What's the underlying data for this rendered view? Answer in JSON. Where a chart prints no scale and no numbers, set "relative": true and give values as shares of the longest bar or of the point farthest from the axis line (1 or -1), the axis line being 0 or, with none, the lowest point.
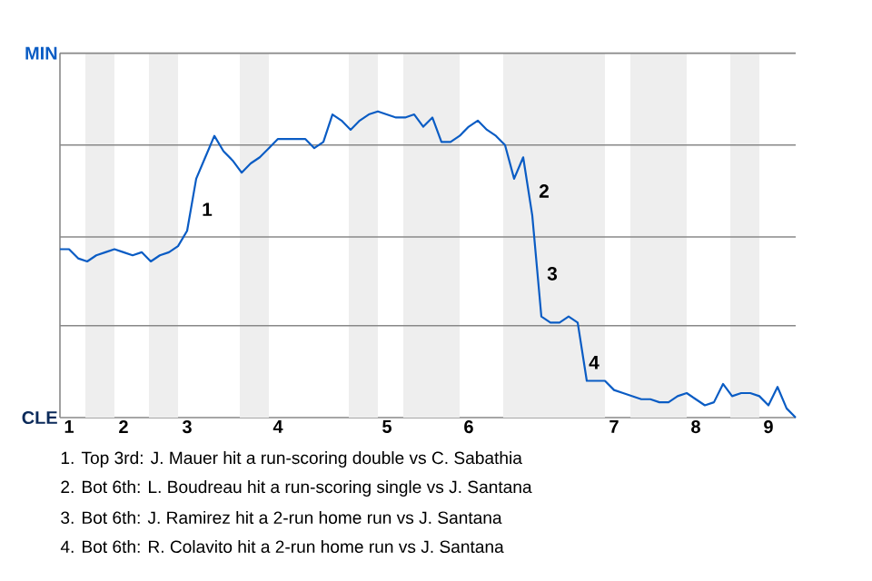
{
  "chart_data": {
    "type": "line",
    "relative": true,
    "categories": [
      null,
      "1",
      null,
      null,
      null,
      null,
      null,
      "2",
      null,
      null,
      null,
      null,
      null,
      null,
      "3",
      null,
      null,
      null,
      null,
      null,
      null,
      null,
      null,
      null,
      "4",
      null,
      null,
      null,
      null,
      null,
      null,
      null,
      null,
      null,
      null,
      null,
      "5",
      null,
      null,
      null,
      null,
      null,
      null,
      null,
      null,
      "6",
      null,
      null,
      null,
      null,
      null,
      null,
      null,
      null,
      null,
      null,
      null,
      null,
      null,
      null,
      null,
      "7",
      null,
      null,
      null,
      null,
      null,
      null,
      null,
      null,
      "8",
      null,
      null,
      null,
      null,
      null,
      null,
      null,
      "9",
      null,
      null,
      null
    ],
    "values": [
      0.55,
      0.55,
      0.52,
      0.51,
      0.53,
      0.54,
      0.55,
      0.54,
      0.53,
      0.54,
      0.51,
      0.53,
      0.54,
      0.56,
      0.61,
      0.78,
      0.85,
      0.92,
      0.87,
      0.84,
      0.8,
      0.83,
      0.85,
      0.88,
      0.91,
      0.91,
      0.91,
      0.91,
      0.88,
      0.9,
      0.99,
      0.97,
      0.94,
      0.97,
      0.99,
      1,
      0.99,
      0.98,
      0.98,
      0.99,
      0.95,
      0.98,
      0.9,
      0.9,
      0.92,
      0.95,
      0.97,
      0.94,
      0.92,
      0.89,
      0.78,
      0.85,
      0.66,
      0.33,
      0.31,
      0.31,
      0.33,
      0.31,
      0.12,
      0.12,
      0.12,
      0.09,
      0.08,
      0.07,
      0.06,
      0.06,
      0.05,
      0.05,
      0.07,
      0.08,
      0.06,
      0.04,
      0.05,
      0.11,
      0.07,
      0.08,
      0.08,
      0.07,
      0.04,
      0.1,
      0.03,
      0
    ],
    "color": "#0a5cc4",
    "line_style": "solid",
    "marker": "none",
    "ref_lines": [
      {
        "axis": "y",
        "value": 0.3,
        "color": "#888888"
      },
      {
        "axis": "y",
        "value": 0.59,
        "color": "#888888"
      },
      {
        "axis": "y",
        "value": 0.89,
        "color": "#888888"
      },
      {
        "axis": "y",
        "value": 1.19,
        "color": "#888888"
      }
    ],
    "annotations": [
      "MIN",
      "CLE",
      "1",
      "2",
      "3",
      "4",
      "1. Top 3rd: J. Mauer hit a run-scoring double vs C. Sabathia",
      "2. Bot 6th: L. Boudreau hit a run-scoring single vs J. Santana",
      "3. Bot 6th: J. Ramirez hit a 2-run home run vs J. Santana",
      "4. Bot 6th: R. Colavito hit a 2-run home run vs J. Santana"
    ]
  }
}
